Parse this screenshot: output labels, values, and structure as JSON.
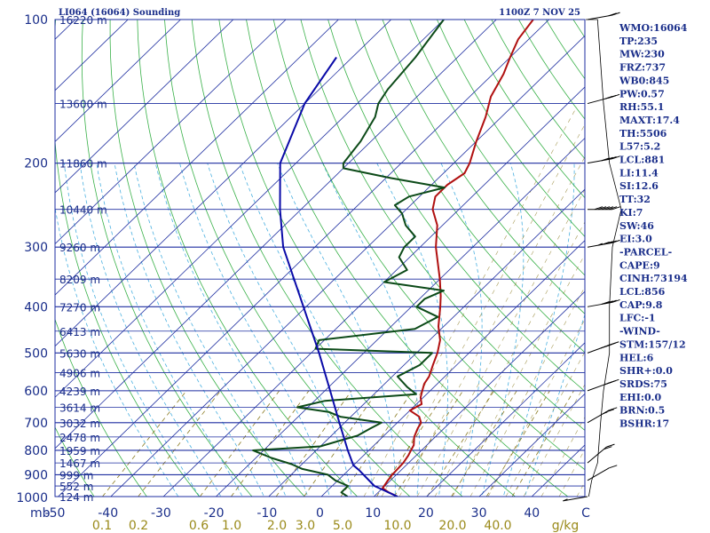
{
  "chart_data": {
    "type": "skew-t",
    "title_left": "LI064 (16064) Sounding",
    "title_right": "1100Z  7 NOV 25",
    "pressure_axis": {
      "unit": "mb",
      "ticks": [
        100,
        200,
        300,
        400,
        500,
        600,
        700,
        800,
        900,
        1000
      ],
      "range": [
        100,
        1000
      ]
    },
    "height_labels": [
      {
        "p": 100,
        "text": "16220 m"
      },
      {
        "p": 150,
        "text": "13600 m"
      },
      {
        "p": 200,
        "text": "11860 m"
      },
      {
        "p": 250,
        "text": "10440 m"
      },
      {
        "p": 300,
        "text": "9260 m"
      },
      {
        "p": 350,
        "text": "8209 m"
      },
      {
        "p": 400,
        "text": "7270 m"
      },
      {
        "p": 450,
        "text": "6413 m"
      },
      {
        "p": 500,
        "text": "5630 m"
      },
      {
        "p": 550,
        "text": "4906 m"
      },
      {
        "p": 600,
        "text": "4239 m"
      },
      {
        "p": 650,
        "text": "3614 m"
      },
      {
        "p": 700,
        "text": "3032 m"
      },
      {
        "p": 750,
        "text": "2478 m"
      },
      {
        "p": 800,
        "text": "1959 m"
      },
      {
        "p": 850,
        "text": "1467 m"
      },
      {
        "p": 900,
        "text": "999 m"
      },
      {
        "p": 950,
        "text": "552 m"
      },
      {
        "p": 1000,
        "text": "124 m"
      }
    ],
    "temperature_axis": {
      "unit": "C",
      "ticks": [
        -50,
        -40,
        -30,
        -20,
        -10,
        0,
        10,
        20,
        30,
        40
      ],
      "tick_labels": [
        "-50",
        "-40",
        "-30",
        "-20",
        "-10",
        "0",
        "10",
        "20",
        "30",
        "40"
      ],
      "unit_label": "C"
    },
    "mixing_ratio_axis": {
      "unit_label": "g/kg",
      "values": [
        0.1,
        0.2,
        0.6,
        1.0,
        2.0,
        3.0,
        5.0,
        10.0,
        20.0,
        40.0
      ],
      "labels": [
        "0.1",
        "0.2",
        "0.6",
        "1.0",
        "2.0",
        "3.0",
        "5.0",
        "10.0",
        "20.0",
        "40.0"
      ]
    },
    "series": [
      {
        "name": "temperature",
        "color": "#b01010",
        "points": [
          {
            "p": 1000,
            "t": 14.5
          },
          {
            "p": 980,
            "t": 12
          },
          {
            "p": 960,
            "t": 10
          },
          {
            "p": 925,
            "t": 9.5
          },
          {
            "p": 900,
            "t": 9.2
          },
          {
            "p": 850,
            "t": 9
          },
          {
            "p": 820,
            "t": 8.5
          },
          {
            "p": 800,
            "t": 8
          },
          {
            "p": 780,
            "t": 7.5
          },
          {
            "p": 750,
            "t": 6
          },
          {
            "p": 720,
            "t": 5
          },
          {
            "p": 700,
            "t": 4.5
          },
          {
            "p": 680,
            "t": 3
          },
          {
            "p": 660,
            "t": 0
          },
          {
            "p": 640,
            "t": 1
          },
          {
            "p": 620,
            "t": -0.5
          },
          {
            "p": 600,
            "t": -1.5
          },
          {
            "p": 580,
            "t": -2.5
          },
          {
            "p": 560,
            "t": -3
          },
          {
            "p": 530,
            "t": -4.5
          },
          {
            "p": 500,
            "t": -6
          },
          {
            "p": 470,
            "t": -8
          },
          {
            "p": 440,
            "t": -11
          },
          {
            "p": 400,
            "t": -14.5
          },
          {
            "p": 380,
            "t": -16.5
          },
          {
            "p": 350,
            "t": -20
          },
          {
            "p": 300,
            "t": -27
          },
          {
            "p": 270,
            "t": -31
          },
          {
            "p": 250,
            "t": -35
          },
          {
            "p": 235,
            "t": -37
          },
          {
            "p": 222,
            "t": -37
          },
          {
            "p": 210,
            "t": -36
          },
          {
            "p": 200,
            "t": -37
          },
          {
            "p": 180,
            "t": -40
          },
          {
            "p": 160,
            "t": -43
          },
          {
            "p": 145,
            "t": -46
          },
          {
            "p": 130,
            "t": -48
          },
          {
            "p": 120,
            "t": -50
          },
          {
            "p": 110,
            "t": -52
          },
          {
            "p": 100,
            "t": -53
          }
        ]
      },
      {
        "name": "dewpoint",
        "color": "#0c4a18",
        "points": [
          {
            "p": 1000,
            "t": 5
          },
          {
            "p": 980,
            "t": 3
          },
          {
            "p": 950,
            "t": 3
          },
          {
            "p": 925,
            "t": -0.5
          },
          {
            "p": 900,
            "t": -3
          },
          {
            "p": 875,
            "t": -9
          },
          {
            "p": 855,
            "t": -12
          },
          {
            "p": 830,
            "t": -17
          },
          {
            "p": 800,
            "t": -22
          },
          {
            "p": 785,
            "t": -10
          },
          {
            "p": 760,
            "t": -7
          },
          {
            "p": 745,
            "t": -5
          },
          {
            "p": 720,
            "t": -4
          },
          {
            "p": 700,
            "t": -3
          },
          {
            "p": 680,
            "t": -12
          },
          {
            "p": 665,
            "t": -15
          },
          {
            "p": 650,
            "t": -22
          },
          {
            "p": 630,
            "t": -18
          },
          {
            "p": 610,
            "t": -2
          },
          {
            "p": 590,
            "t": -5
          },
          {
            "p": 560,
            "t": -9
          },
          {
            "p": 530,
            "t": -7
          },
          {
            "p": 500,
            "t": -7
          },
          {
            "p": 490,
            "t": -30
          },
          {
            "p": 470,
            "t": -31
          },
          {
            "p": 445,
            "t": -15
          },
          {
            "p": 420,
            "t": -13
          },
          {
            "p": 400,
            "t": -19
          },
          {
            "p": 385,
            "t": -19
          },
          {
            "p": 370,
            "t": -17
          },
          {
            "p": 355,
            "t": -30
          },
          {
            "p": 335,
            "t": -28
          },
          {
            "p": 315,
            "t": -32
          },
          {
            "p": 300,
            "t": -33
          },
          {
            "p": 285,
            "t": -33
          },
          {
            "p": 270,
            "t": -37
          },
          {
            "p": 255,
            "t": -40
          },
          {
            "p": 245,
            "t": -43
          },
          {
            "p": 235,
            "t": -42
          },
          {
            "p": 225,
            "t": -37
          },
          {
            "p": 215,
            "t": -49
          },
          {
            "p": 205,
            "t": -60
          },
          {
            "p": 200,
            "t": -61
          },
          {
            "p": 180,
            "t": -62
          },
          {
            "p": 160,
            "t": -64
          },
          {
            "p": 150,
            "t": -66
          },
          {
            "p": 140,
            "t": -67
          },
          {
            "p": 120,
            "t": -68
          },
          {
            "p": 100,
            "t": -70
          }
        ]
      },
      {
        "name": "parcel",
        "color": "#0a0aa8",
        "points": [
          {
            "p": 1000,
            "t": 14.5
          },
          {
            "p": 950,
            "t": 8
          },
          {
            "p": 880,
            "t": 2
          },
          {
            "p": 860,
            "t": 0
          },
          {
            "p": 800,
            "t": -4
          },
          {
            "p": 700,
            "t": -11
          },
          {
            "p": 600,
            "t": -19
          },
          {
            "p": 500,
            "t": -28.5
          },
          {
            "p": 400,
            "t": -40.5
          },
          {
            "p": 300,
            "t": -56
          },
          {
            "p": 250,
            "t": -64
          },
          {
            "p": 200,
            "t": -73
          },
          {
            "p": 150,
            "t": -80
          },
          {
            "p": 120,
            "t": -83
          }
        ]
      }
    ],
    "winds": [
      {
        "p": 1000,
        "dir": 100,
        "kt": 5
      },
      {
        "p": 925,
        "dir": 300,
        "kt": 10
      },
      {
        "p": 850,
        "dir": 310,
        "kt": 20
      },
      {
        "p": 700,
        "dir": 300,
        "kt": 25
      },
      {
        "p": 600,
        "dir": 290,
        "kt": 30
      },
      {
        "p": 500,
        "dir": 290,
        "kt": 40
      },
      {
        "p": 400,
        "dir": 280,
        "kt": 40
      },
      {
        "p": 300,
        "dir": 280,
        "kt": 45
      },
      {
        "p": 250,
        "dir": 270,
        "kt": 60
      },
      {
        "p": 200,
        "dir": 280,
        "kt": 40
      },
      {
        "p": 150,
        "dir": 285,
        "kt": 30
      },
      {
        "p": 100,
        "dir": 280,
        "kt": 20
      }
    ],
    "indices": [
      "WMO:16064",
      "TP:235",
      "MW:230",
      "FRZ:737",
      "WB0:845",
      "PW:0.57",
      "RH:55.1",
      "MAXT:17.4",
      "TH:5506",
      "L57:5.2",
      "LCL:881",
      "LI:11.4",
      "SI:12.6",
      "TT:32",
      "KI:7",
      "SW:46",
      "EI:3.0",
      "-PARCEL-",
      "CAPE:9",
      "CINH:73194",
      "LCL:856",
      "CAP:9.8",
      "LFC:-1",
      "-WIND-",
      "STM:157/12",
      "HEL:6",
      "SHR+:0.0",
      "SRDS:75",
      "EHI:0.0",
      "BRN:0.5",
      "BSHR:17"
    ],
    "colors": {
      "isotherm": "#1e2ea0",
      "isobar": "#1e2ea0",
      "dry_adiabat": "#38b048",
      "moist_adiabat": "#4ab0e0",
      "mixing_ratio": "#8a7a20",
      "wind": "#000000",
      "text": "#1a2e8a"
    }
  }
}
